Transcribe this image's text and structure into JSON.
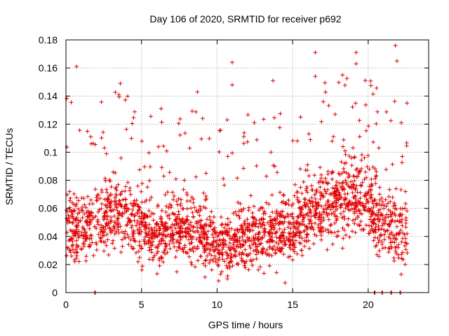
{
  "chart_data": {
    "type": "scatter",
    "title": "Day 106 of 2020, SRMTID for receiver p692",
    "xlabel": "GPS time / hours",
    "ylabel": "SRMTID / TECUs",
    "xlim": [
      0,
      24
    ],
    "ylim": [
      0,
      0.18
    ],
    "xticks": [
      0,
      5,
      10,
      15,
      20
    ],
    "yticks": [
      0,
      0.02,
      0.04,
      0.06,
      0.08,
      0.1,
      0.12,
      0.14,
      0.16,
      0.18
    ],
    "xtick_labels": [
      "0",
      "5",
      "10",
      "15",
      "20"
    ],
    "ytick_labels": [
      "0",
      "0.02",
      "0.04",
      "0.06",
      "0.08",
      "0.1",
      "0.12",
      "0.14",
      "0.16",
      "0.18"
    ],
    "grid": true,
    "marker": "+",
    "color": "#e00000",
    "n_points_approx": 2200,
    "series": [
      {
        "name": "SRMTID p692",
        "description": "dense scatter of 30-s samples; bulk between 0.02 and 0.08 TECU with spikes",
        "band_profile": {
          "hours": [
            0,
            1,
            2,
            3,
            4,
            5,
            6,
            7,
            8,
            9,
            10,
            11,
            12,
            13,
            14,
            15,
            16,
            17,
            18,
            19,
            20,
            21,
            22,
            22.6
          ],
          "typical": [
            0.05,
            0.045,
            0.05,
            0.055,
            0.055,
            0.045,
            0.045,
            0.045,
            0.045,
            0.04,
            0.035,
            0.035,
            0.04,
            0.04,
            0.04,
            0.045,
            0.055,
            0.06,
            0.065,
            0.07,
            0.065,
            0.05,
            0.045,
            0.045
          ],
          "spread": [
            0.02,
            0.02,
            0.02,
            0.02,
            0.018,
            0.018,
            0.018,
            0.018,
            0.018,
            0.018,
            0.016,
            0.016,
            0.018,
            0.018,
            0.018,
            0.02,
            0.02,
            0.022,
            0.022,
            0.022,
            0.02,
            0.02,
            0.02,
            0.02
          ]
        },
        "notable_points": [
          {
            "x": 0.7,
            "y": 0.161
          },
          {
            "x": 3.6,
            "y": 0.149
          },
          {
            "x": 3.5,
            "y": 0.141
          },
          {
            "x": 6.3,
            "y": 0.131
          },
          {
            "x": 8.7,
            "y": 0.143
          },
          {
            "x": 11.0,
            "y": 0.164
          },
          {
            "x": 11.0,
            "y": 0.148
          },
          {
            "x": 13.7,
            "y": 0.151
          },
          {
            "x": 16.5,
            "y": 0.171
          },
          {
            "x": 16.5,
            "y": 0.154
          },
          {
            "x": 18.3,
            "y": 0.155
          },
          {
            "x": 19.2,
            "y": 0.171
          },
          {
            "x": 19.2,
            "y": 0.163
          },
          {
            "x": 21.8,
            "y": 0.176
          },
          {
            "x": 21.9,
            "y": 0.165
          },
          {
            "x": 9.2,
            "y": 0.011
          },
          {
            "x": 14.5,
            "y": 0.007
          }
        ],
        "zero_values_near_hours": [
          1.9,
          20.4,
          20.9,
          21.5,
          22.1
        ]
      }
    ]
  }
}
